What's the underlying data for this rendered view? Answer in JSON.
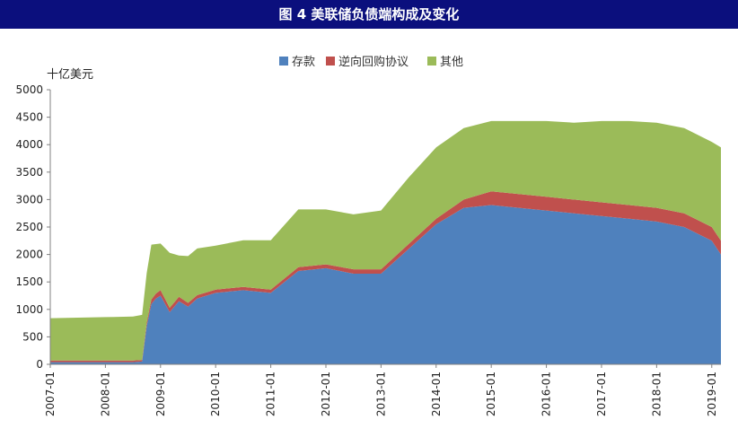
{
  "header": {
    "title": "图 4 美联储负债端构成及变化"
  },
  "colors": {
    "title_bg": "#0b0f7d",
    "deposits": "#4f81bd",
    "repo": "#c0504d",
    "other": "#9bbb59"
  },
  "chart_data": {
    "type": "area",
    "stacked": true,
    "ylabel": "十亿美元",
    "ylim": [
      0,
      5000
    ],
    "yticks": [
      "0",
      "500",
      "1000",
      "1500",
      "2000",
      "2500",
      "3000",
      "3500",
      "4000",
      "4500",
      "5000"
    ],
    "xlim": [
      "2007-01",
      "2019-03"
    ],
    "xticks": [
      "2007-01",
      "2008-01",
      "2009-01",
      "2010-01",
      "2011-01",
      "2012-01",
      "2013-01",
      "2014-01",
      "2015-01",
      "2016-01",
      "2017-01",
      "2018-01",
      "2019-01"
    ],
    "legend_position": "top",
    "x": [
      "2007-01",
      "2007-07",
      "2008-01",
      "2008-07",
      "2008-09",
      "2008-10",
      "2008-11",
      "2008-12",
      "2009-01",
      "2009-03",
      "2009-05",
      "2009-07",
      "2009-09",
      "2010-01",
      "2010-07",
      "2011-01",
      "2011-07",
      "2012-01",
      "2012-07",
      "2013-01",
      "2013-07",
      "2014-01",
      "2014-07",
      "2015-01",
      "2015-07",
      "2016-01",
      "2016-07",
      "2017-01",
      "2017-07",
      "2018-01",
      "2018-07",
      "2019-01",
      "2019-03"
    ],
    "series": [
      {
        "name": "存款",
        "values": [
          40,
          40,
          40,
          40,
          50,
          700,
          1100,
          1200,
          1250,
          950,
          1150,
          1050,
          1200,
          1300,
          1350,
          1300,
          1700,
          1750,
          1650,
          1650,
          2100,
          2550,
          2850,
          2900,
          2850,
          2800,
          2750,
          2700,
          2650,
          2600,
          2500,
          2250,
          2000
        ]
      },
      {
        "name": "逆向回购协议",
        "values": [
          30,
          30,
          30,
          30,
          30,
          60,
          80,
          90,
          100,
          80,
          80,
          70,
          60,
          60,
          60,
          60,
          70,
          70,
          80,
          80,
          90,
          100,
          150,
          250,
          250,
          250,
          250,
          250,
          250,
          250,
          250,
          250,
          250
        ]
      },
      {
        "name": "其他",
        "values": [
          770,
          780,
          790,
          800,
          820,
          900,
          1000,
          900,
          850,
          1000,
          750,
          850,
          850,
          800,
          850,
          900,
          1050,
          1000,
          1000,
          1070,
          1210,
          1300,
          1300,
          1280,
          1330,
          1380,
          1400,
          1480,
          1530,
          1550,
          1550,
          1550,
          1700
        ]
      }
    ]
  }
}
